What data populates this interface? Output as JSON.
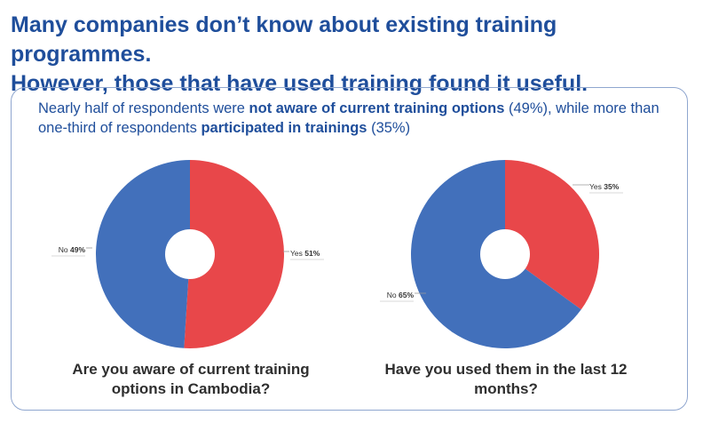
{
  "headline": {
    "line1": "Many companies don’t know about existing training programmes.",
    "line2": "However, those that have used training found it useful."
  },
  "intro": {
    "part1": "Nearly half of respondents were ",
    "bold1": "not aware of current training options",
    "part2": " (49%), while more than one-third of respondents ",
    "bold2": "participated in trainings",
    "part3": " (35%)"
  },
  "colors": {
    "yes": "#e8474a",
    "no": "#4270bb",
    "text_blue": "#1f4e9b"
  },
  "chart_data": [
    {
      "type": "pie",
      "title": "Are you aware of current training options in Cambodia?",
      "slices": [
        {
          "label": "Yes",
          "value": 51,
          "display": "51%"
        },
        {
          "label": "No",
          "value": 49,
          "display": "49%"
        }
      ]
    },
    {
      "type": "pie",
      "title": "Have you used them in the last 12 months?",
      "slices": [
        {
          "label": "Yes",
          "value": 35,
          "display": "35%"
        },
        {
          "label": "No",
          "value": 65,
          "display": "65%"
        }
      ]
    }
  ]
}
